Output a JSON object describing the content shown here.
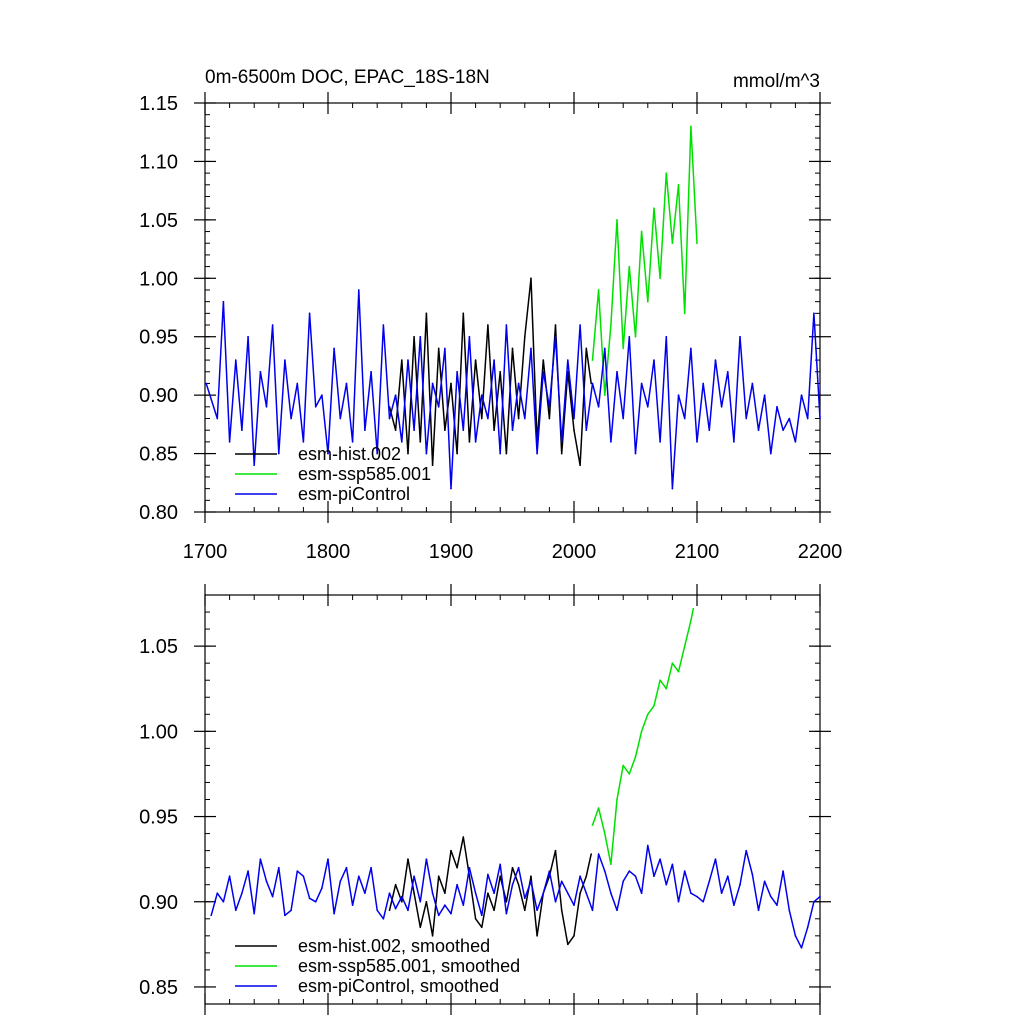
{
  "chart_data": [
    {
      "type": "line",
      "title": "0m-6500m DOC, EPAC_18S-18N",
      "units": "mmol/m^3",
      "xlim": [
        1700,
        2200
      ],
      "ylim": [
        0.8,
        1.15
      ],
      "xticks": [
        1700,
        1800,
        1900,
        2000,
        2100,
        2200
      ],
      "yticks": [
        0.8,
        0.85,
        0.9,
        0.95,
        1.0,
        1.05,
        1.1,
        1.15
      ],
      "ytick_labels": [
        "0.80",
        "0.85",
        "0.90",
        "0.95",
        "1.00",
        "1.05",
        "1.10",
        "1.15"
      ],
      "grid": false,
      "legend_position": "bottom-left",
      "series": [
        {
          "name": "esm-hist.002",
          "color": "#000000",
          "x": [
            1850,
            1855,
            1860,
            1865,
            1870,
            1875,
            1880,
            1885,
            1890,
            1895,
            1900,
            1905,
            1910,
            1915,
            1920,
            1925,
            1930,
            1935,
            1940,
            1945,
            1950,
            1955,
            1960,
            1965,
            1970,
            1975,
            1980,
            1985,
            1990,
            1995,
            2000,
            2005,
            2010,
            2014
          ],
          "y": [
            0.89,
            0.87,
            0.93,
            0.85,
            0.95,
            0.86,
            0.97,
            0.84,
            0.94,
            0.87,
            0.91,
            0.85,
            0.97,
            0.86,
            0.93,
            0.88,
            0.96,
            0.87,
            0.92,
            0.85,
            0.94,
            0.88,
            0.95,
            1.0,
            0.86,
            0.93,
            0.88,
            0.96,
            0.85,
            0.92,
            0.87,
            0.84,
            0.94,
            0.91
          ]
        },
        {
          "name": "esm-ssp585.001",
          "color": "#00e000",
          "x": [
            2015,
            2020,
            2025,
            2030,
            2035,
            2040,
            2045,
            2050,
            2055,
            2060,
            2065,
            2070,
            2075,
            2080,
            2085,
            2090,
            2095,
            2100
          ],
          "y": [
            0.93,
            0.99,
            0.9,
            0.96,
            1.05,
            0.94,
            1.01,
            0.95,
            1.04,
            0.98,
            1.06,
            1.0,
            1.09,
            1.03,
            1.08,
            0.97,
            1.13,
            1.03
          ]
        },
        {
          "name": "esm-piControl",
          "color": "#0000ee",
          "x": [
            1701,
            1710,
            1715,
            1720,
            1725,
            1730,
            1735,
            1740,
            1745,
            1750,
            1755,
            1760,
            1765,
            1770,
            1775,
            1780,
            1785,
            1790,
            1795,
            1800,
            1805,
            1810,
            1815,
            1820,
            1825,
            1830,
            1835,
            1840,
            1845,
            1850,
            1855,
            1860,
            1865,
            1870,
            1875,
            1880,
            1885,
            1890,
            1895,
            1900,
            1905,
            1910,
            1915,
            1920,
            1925,
            1930,
            1935,
            1940,
            1945,
            1950,
            1955,
            1960,
            1965,
            1970,
            1975,
            1980,
            1985,
            1990,
            1995,
            2000,
            2005,
            2010,
            2015,
            2020,
            2025,
            2030,
            2035,
            2040,
            2045,
            2050,
            2055,
            2060,
            2065,
            2070,
            2075,
            2080,
            2085,
            2090,
            2095,
            2100,
            2105,
            2110,
            2115,
            2120,
            2125,
            2130,
            2135,
            2140,
            2145,
            2150,
            2155,
            2160,
            2165,
            2170,
            2175,
            2180,
            2185,
            2190,
            2195,
            2200
          ],
          "y": [
            0.91,
            0.88,
            0.98,
            0.86,
            0.93,
            0.87,
            0.95,
            0.84,
            0.92,
            0.89,
            0.96,
            0.85,
            0.93,
            0.88,
            0.91,
            0.86,
            0.97,
            0.89,
            0.9,
            0.85,
            0.94,
            0.88,
            0.91,
            0.86,
            0.99,
            0.87,
            0.92,
            0.85,
            0.96,
            0.88,
            0.9,
            0.86,
            0.93,
            0.87,
            0.95,
            0.85,
            0.91,
            0.89,
            0.94,
            0.82,
            0.92,
            0.87,
            0.95,
            0.86,
            0.9,
            0.88,
            0.93,
            0.85,
            0.96,
            0.87,
            0.91,
            0.88,
            0.94,
            0.85,
            0.92,
            0.89,
            0.95,
            0.86,
            0.93,
            0.88,
            0.96,
            0.87,
            0.91,
            0.89,
            0.94,
            0.86,
            0.92,
            0.88,
            0.95,
            0.85,
            0.91,
            0.89,
            0.93,
            0.86,
            0.95,
            0.82,
            0.9,
            0.88,
            0.94,
            0.86,
            0.91,
            0.87,
            0.93,
            0.89,
            0.92,
            0.86,
            0.95,
            0.88,
            0.91,
            0.87,
            0.9,
            0.85,
            0.89,
            0.87,
            0.88,
            0.86,
            0.9,
            0.88,
            0.97,
            0.88
          ]
        }
      ]
    },
    {
      "type": "line",
      "xlim": [
        1700,
        2200
      ],
      "ylim": [
        0.84,
        1.08
      ],
      "xticks": [
        1700,
        1800,
        1900,
        2000,
        2100,
        2200
      ],
      "yticks": [
        0.85,
        0.9,
        0.95,
        1.0,
        1.05
      ],
      "ytick_labels": [
        "0.85",
        "0.90",
        "0.95",
        "1.00",
        "1.05"
      ],
      "grid": false,
      "legend_position": "bottom-left",
      "series": [
        {
          "name": "esm-hist.002, smoothed",
          "color": "#000000",
          "x": [
            1850,
            1855,
            1860,
            1865,
            1870,
            1875,
            1880,
            1885,
            1890,
            1895,
            1900,
            1905,
            1910,
            1915,
            1920,
            1925,
            1930,
            1935,
            1940,
            1945,
            1950,
            1955,
            1960,
            1965,
            1970,
            1975,
            1980,
            1985,
            1990,
            1995,
            2000,
            2005,
            2010,
            2014
          ],
          "y": [
            0.895,
            0.91,
            0.9,
            0.925,
            0.905,
            0.885,
            0.9,
            0.88,
            0.915,
            0.905,
            0.93,
            0.92,
            0.938,
            0.915,
            0.89,
            0.885,
            0.905,
            0.895,
            0.915,
            0.9,
            0.92,
            0.91,
            0.895,
            0.915,
            0.88,
            0.905,
            0.915,
            0.93,
            0.895,
            0.875,
            0.88,
            0.905,
            0.915,
            0.928
          ]
        },
        {
          "name": "esm-ssp585.001, smoothed",
          "color": "#00e000",
          "x": [
            2015,
            2020,
            2025,
            2030,
            2035,
            2040,
            2045,
            2050,
            2055,
            2060,
            2065,
            2070,
            2075,
            2080,
            2085,
            2090,
            2095,
            2097
          ],
          "y": [
            0.945,
            0.955,
            0.94,
            0.922,
            0.96,
            0.98,
            0.975,
            0.985,
            1.0,
            1.01,
            1.015,
            1.03,
            1.025,
            1.04,
            1.035,
            1.05,
            1.065,
            1.072
          ]
        },
        {
          "name": "esm-piControl, smoothed",
          "color": "#0000ee",
          "x": [
            1705,
            1710,
            1715,
            1720,
            1725,
            1730,
            1735,
            1740,
            1745,
            1750,
            1755,
            1760,
            1765,
            1770,
            1775,
            1780,
            1785,
            1790,
            1795,
            1800,
            1805,
            1810,
            1815,
            1820,
            1825,
            1830,
            1835,
            1840,
            1845,
            1850,
            1855,
            1860,
            1865,
            1870,
            1875,
            1880,
            1885,
            1890,
            1895,
            1900,
            1905,
            1910,
            1915,
            1920,
            1925,
            1930,
            1935,
            1940,
            1945,
            1950,
            1955,
            1960,
            1965,
            1970,
            1975,
            1980,
            1985,
            1990,
            1995,
            2000,
            2005,
            2010,
            2015,
            2020,
            2025,
            2030,
            2035,
            2040,
            2045,
            2050,
            2055,
            2060,
            2065,
            2070,
            2075,
            2080,
            2085,
            2090,
            2095,
            2100,
            2105,
            2110,
            2115,
            2120,
            2125,
            2130,
            2135,
            2140,
            2145,
            2150,
            2155,
            2160,
            2165,
            2170,
            2175,
            2180,
            2185,
            2190,
            2195,
            2200
          ],
          "y": [
            0.892,
            0.905,
            0.9,
            0.915,
            0.895,
            0.905,
            0.918,
            0.893,
            0.925,
            0.912,
            0.903,
            0.92,
            0.892,
            0.895,
            0.918,
            0.915,
            0.902,
            0.9,
            0.908,
            0.925,
            0.893,
            0.912,
            0.92,
            0.898,
            0.915,
            0.905,
            0.92,
            0.895,
            0.89,
            0.905,
            0.896,
            0.903,
            0.895,
            0.915,
            0.9,
            0.925,
            0.905,
            0.892,
            0.898,
            0.893,
            0.91,
            0.898,
            0.92,
            0.905,
            0.892,
            0.916,
            0.905,
            0.922,
            0.893,
            0.91,
            0.92,
            0.902,
            0.912,
            0.895,
            0.905,
            0.918,
            0.9,
            0.912,
            0.905,
            0.898,
            0.915,
            0.905,
            0.895,
            0.928,
            0.918,
            0.905,
            0.895,
            0.912,
            0.918,
            0.915,
            0.905,
            0.933,
            0.915,
            0.925,
            0.91,
            0.922,
            0.9,
            0.918,
            0.905,
            0.903,
            0.9,
            0.912,
            0.925,
            0.905,
            0.915,
            0.898,
            0.91,
            0.93,
            0.916,
            0.895,
            0.912,
            0.903,
            0.898,
            0.918,
            0.895,
            0.88,
            0.873,
            0.885,
            0.9,
            0.903
          ]
        }
      ]
    }
  ]
}
